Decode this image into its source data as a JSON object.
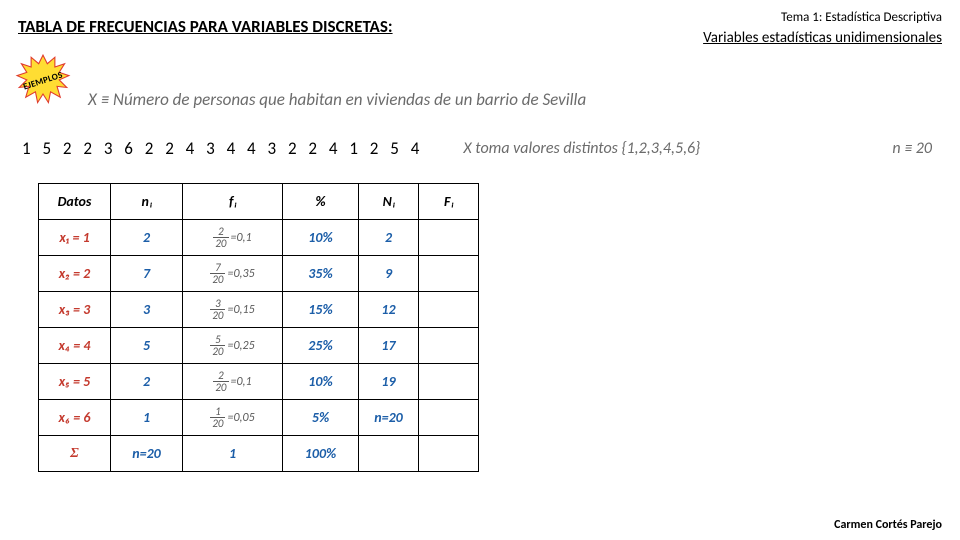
{
  "header": {
    "topic": "Tema 1: Estadística Descriptiva",
    "title": "TABLA DE FRECUENCIAS PARA VARIABLES DISCRETAS:",
    "subtitle": "Variables estadísticas unidimensionales"
  },
  "starburst": {
    "label": "EJEMPLOS",
    "fill": "#ffdd33",
    "stroke": "#e03a2e"
  },
  "definition": {
    "var": "X ≡",
    "text": " Número de personas que habitan en viviendas de un barrio de Sevilla"
  },
  "sequence": "1  5  2  2  3  6  2  2  4  3  4  4  3  2  2  4  1  2  5  4",
  "note_distinct": "X toma valores distintos {1,2,3,4,5,6}",
  "note_n": "n ≡ 20",
  "table": {
    "headers": {
      "datos": "Datos",
      "ni": "nᵢ",
      "fi": "fᵢ",
      "pct": "%",
      "Ni": "Nᵢ",
      "Fi": "Fᵢ"
    },
    "rows": [
      {
        "x": "x₁ = 1",
        "ni": "2",
        "frac_top": "2",
        "frac_bot": "20",
        "fval": "=0,1",
        "pct": "10%",
        "Ni": "2",
        "Fi": ""
      },
      {
        "x": "x₂ = 2",
        "ni": "7",
        "frac_top": "7",
        "frac_bot": "20",
        "fval": "=0,35",
        "pct": "35%",
        "Ni": "9",
        "Fi": ""
      },
      {
        "x": "x₃ = 3",
        "ni": "3",
        "frac_top": "3",
        "frac_bot": "20",
        "fval": "=0,15",
        "pct": "15%",
        "Ni": "12",
        "Fi": ""
      },
      {
        "x": "x₄ = 4",
        "ni": "5",
        "frac_top": "5",
        "frac_bot": "20",
        "fval": "=0,25",
        "pct": "25%",
        "Ni": "17",
        "Fi": ""
      },
      {
        "x": "x₅ = 5",
        "ni": "2",
        "frac_top": "2",
        "frac_bot": "20",
        "fval": "=0,1",
        "pct": "10%",
        "Ni": "19",
        "Fi": ""
      },
      {
        "x": "x₆ = 6",
        "ni": "1",
        "frac_top": "1",
        "frac_bot": "20",
        "fval": "=0,05",
        "pct": "5%",
        "Ni": "n=20",
        "Fi": ""
      }
    ],
    "totals": {
      "sigma": "Σ",
      "ni": "n=20",
      "fi": "1",
      "pct": "100%",
      "Ni": "",
      "Fi": ""
    }
  },
  "author": "Carmen Cortés Parejo"
}
